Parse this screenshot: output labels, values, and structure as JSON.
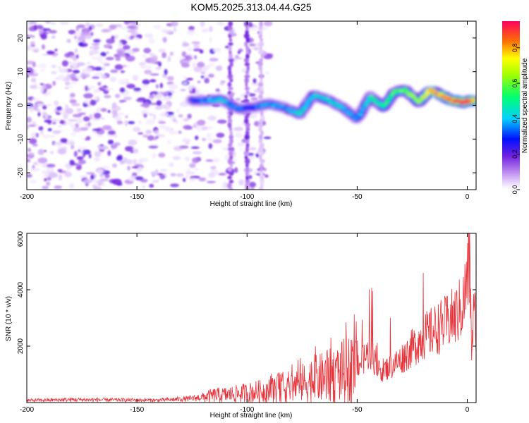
{
  "title": "KOM5.2025.313.04.44.G25",
  "chart_data": [
    {
      "type": "heatmap",
      "xlabel": "Height of straight line (km)",
      "ylabel": "Frequency (Hz)",
      "xlim": [
        -200,
        4
      ],
      "ylim": [
        -25,
        25
      ],
      "xticks": [
        -200,
        -150,
        -100,
        -50,
        0
      ],
      "yticks": [
        -20,
        -10,
        0,
        10,
        20
      ],
      "colorbar": {
        "label": "Normalized spectral amplitude",
        "range": [
          0,
          0.95
        ],
        "ticks": [
          0.0,
          0.2,
          0.4,
          0.6,
          0.8
        ]
      },
      "ridge": {
        "x": [
          -125,
          -118,
          -112,
          -104,
          -98,
          -90,
          -84,
          -76,
          -70,
          -63,
          -56,
          -50,
          -44,
          -38,
          -33,
          -28,
          -22,
          -17,
          -12,
          -7,
          -2,
          3
        ],
        "y": [
          1.5,
          1.5,
          1.8,
          -1.0,
          -0.6,
          0.5,
          -0.5,
          -2.5,
          3.0,
          1.5,
          -1.0,
          -4.0,
          2.5,
          -0.5,
          4.0,
          4.5,
          1.0,
          4.5,
          3.0,
          1.5,
          1.0,
          1.5
        ],
        "amplitude": [
          0.3,
          0.35,
          0.4,
          0.35,
          0.3,
          0.4,
          0.35,
          0.45,
          0.4,
          0.45,
          0.4,
          0.35,
          0.45,
          0.5,
          0.55,
          0.6,
          0.65,
          0.8,
          0.85,
          0.9,
          0.95,
          0.9
        ]
      }
    },
    {
      "type": "line",
      "xlabel": "Height of straight line (km)",
      "ylabel": "SNR (10 * v/v)",
      "xlim": [
        -200,
        4
      ],
      "ylim": [
        0,
        6000
      ],
      "xticks": [
        -200,
        -150,
        -100,
        -50,
        0
      ],
      "yticks": [
        2000,
        4000,
        6000
      ],
      "envelope": {
        "x": [
          -200,
          -180,
          -160,
          -140,
          -125,
          -115,
          -110,
          -100,
          -90,
          -80,
          -70,
          -62,
          -55,
          -48,
          -44,
          -40,
          -35,
          -30,
          -25,
          -20,
          -15,
          -10,
          -5,
          -2,
          0,
          1,
          2,
          3,
          4
        ],
        "y": [
          80,
          110,
          100,
          90,
          150,
          280,
          300,
          380,
          480,
          620,
          880,
          1050,
          1250,
          1500,
          1900,
          1150,
          1300,
          1600,
          2000,
          2400,
          2650,
          2900,
          3200,
          3550,
          4500,
          5200,
          2000,
          3300,
          2900
        ]
      },
      "spikes": [
        {
          "x": -62,
          "y": 2300
        },
        {
          "x": -43,
          "y": 3950
        },
        {
          "x": -35,
          "y": 3000
        },
        {
          "x": -20,
          "y": 4600
        },
        {
          "x": -10,
          "y": 3700
        },
        {
          "x": 1,
          "y": 6200
        },
        {
          "x": 2,
          "y": 1500
        }
      ]
    }
  ]
}
